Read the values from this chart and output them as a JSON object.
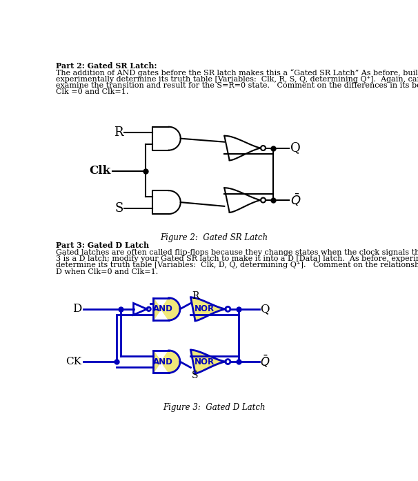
{
  "bg_color": "#ffffff",
  "text_color": "#000000",
  "blue_color": "#0000bb",
  "part2_title": "Part 2: Gated SR Latch:",
  "part2_body_line1": "The addition of AND gates before the SR latch makes this a “Gated SR Latch” As before, build this and",
  "part2_body_line2": "experimentally determine its truth table [Variables:  Clk, R, S, Q, determining Q⁺].  Again, carefully",
  "part2_body_line3": "examine the transition and result for the S=R=0 state.   Comment on the differences in its behavior when",
  "part2_body_line4": "Clk =0 and Clk=1.",
  "fig2_caption": "Figure 2:  Gated SR Latch",
  "part3_title": "Part 3: Gated D Latch",
  "part3_body_line1": "Gated latches are often called flip-flops because they change states when the clock signals them.  Figure",
  "part3_body_line2": "3 is a D latch; modify your Gated SR latch to make it into a D [Data] latch.  As before, experimentally",
  "part3_body_line3": "determine its truth table [Variables:  Clk, D, Q, determining Q⁺].   Comment on the relationship of Q⁺ and",
  "part3_body_line4": "D when Clk=0 and Clk=1.",
  "fig3_caption": "Figure 3:  Gated D Latch"
}
